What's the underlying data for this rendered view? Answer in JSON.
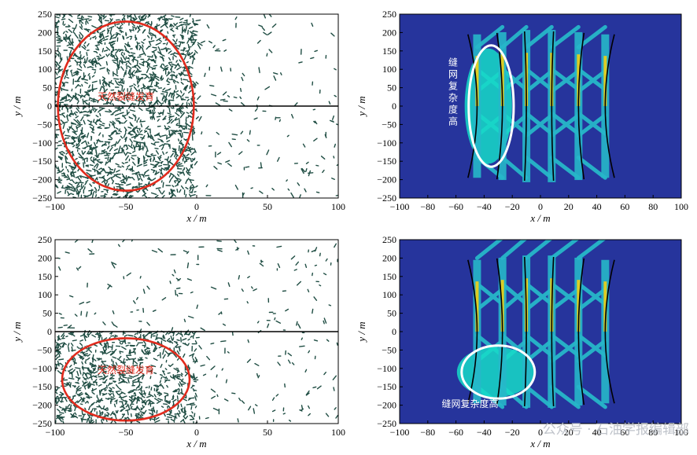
{
  "watermark": "公众号 · 石油学报编辑部",
  "colors": {
    "fracture": "#1f4d43",
    "field": "#26349c",
    "mid": "#27b7c9",
    "high": "#16dcc8",
    "peak": "#f2cf12",
    "ellipse_red": "#e12b1d",
    "ellipse_white": "#ffffff",
    "line": "#000000"
  },
  "chart_data": [
    {
      "type": "scatter",
      "panel": "top-left",
      "title": "",
      "xlabel": "x / m",
      "ylabel": "y / m",
      "xlim": [
        -100,
        100
      ],
      "ylim": [
        -250,
        250
      ],
      "xticks": [
        "−100",
        "−50",
        "0",
        "50",
        "100"
      ],
      "yticks": [
        "250",
        "200",
        "150",
        "100",
        "50",
        "0",
        "−50",
        "−100",
        "−150",
        "−200",
        "−250"
      ],
      "horizontal_line_y": 0,
      "dense_region": {
        "x": [
          -100,
          0
        ],
        "y": [
          -250,
          250
        ]
      },
      "ellipse": {
        "cx": -50,
        "cy": 0,
        "rx": 48,
        "ry": 230
      },
      "annotation": "天然裂缝发育"
    },
    {
      "type": "heatmap",
      "panel": "top-right",
      "title": "",
      "xlabel": "x / m",
      "ylabel": "y / m",
      "xlim": [
        -100,
        100
      ],
      "ylim": [
        -250,
        250
      ],
      "xticks": [
        "−100",
        "−80",
        "−60",
        "−40",
        "−20",
        "0",
        "20",
        "40",
        "60",
        "80",
        "100"
      ],
      "yticks": [
        "250",
        "200",
        "150",
        "100",
        "50",
        "0",
        "−50",
        "−100",
        "−150",
        "−200",
        "−250"
      ],
      "hydraulic_fractures_x": [
        -45,
        -27,
        -10,
        8,
        27,
        46
      ],
      "ellipse": {
        "cx": -35,
        "cy": 0,
        "rx": 16,
        "ry": 165
      },
      "annotation": "缝网复杂度高"
    },
    {
      "type": "scatter",
      "panel": "bottom-left",
      "title": "",
      "xlabel": "x / m",
      "ylabel": "y / m",
      "xlim": [
        -100,
        100
      ],
      "ylim": [
        -250,
        250
      ],
      "xticks": [
        "−100",
        "−50",
        "0",
        "50",
        "100"
      ],
      "yticks": [
        "250",
        "200",
        "150",
        "100",
        "50",
        "0",
        "−50",
        "−100",
        "−150",
        "−200",
        "−250"
      ],
      "horizontal_line_y": 0,
      "dense_region": {
        "x": [
          -100,
          0
        ],
        "y": [
          -250,
          0
        ]
      },
      "ellipse": {
        "cx": -50,
        "cy": -130,
        "rx": 45,
        "ry": 112
      },
      "annotation": "天然裂缝发育"
    },
    {
      "type": "heatmap",
      "panel": "bottom-right",
      "title": "",
      "xlabel": "x / m",
      "ylabel": "y / m",
      "xlim": [
        -100,
        100
      ],
      "ylim": [
        -250,
        250
      ],
      "xticks": [
        "−100",
        "−80",
        "−60",
        "−40",
        "−20",
        "0",
        "20",
        "40",
        "60",
        "80",
        "100"
      ],
      "yticks": [
        "250",
        "200",
        "150",
        "100",
        "50",
        "0",
        "−50",
        "−100",
        "−150",
        "−200",
        "−250"
      ],
      "hydraulic_fractures_x": [
        -45,
        -27,
        -10,
        8,
        27,
        46
      ],
      "ellipse": {
        "cx": -30,
        "cy": -110,
        "rx": 26,
        "ry": 72
      },
      "annotation": "缝网复杂度高"
    }
  ]
}
